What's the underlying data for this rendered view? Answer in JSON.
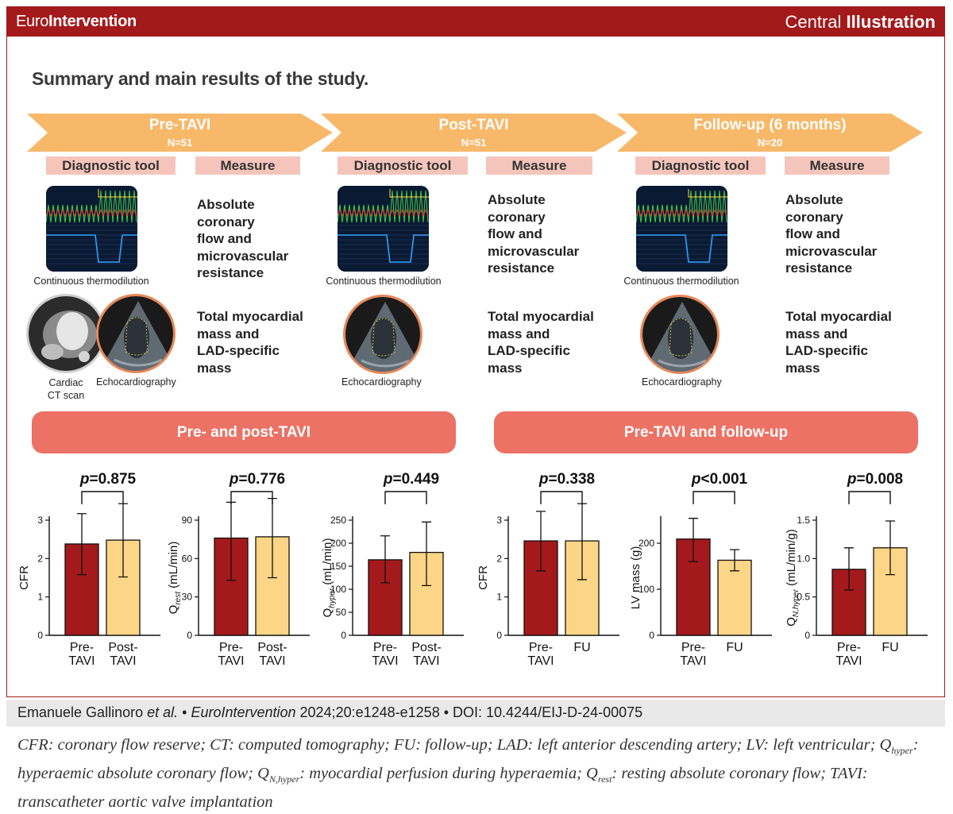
{
  "header": {
    "brand_light": "Euro",
    "brand_bold": "Intervention",
    "central_light": "Central",
    "central_bold": "Illustration"
  },
  "title": "Summary and main results of the study.",
  "colors": {
    "brand_red": "#a3191c",
    "arrow": "#f8b869",
    "chip": "#f5c5bb",
    "pill": "#ec7265",
    "bar_dark": "#a3191c",
    "bar_light": "#fdd586"
  },
  "phases": [
    {
      "label": "Pre-TAVI",
      "n": "N=51"
    },
    {
      "label": "Post-TAVI",
      "n": "N=51"
    },
    {
      "label": "Follow-up (6 months)",
      "n": "N=20"
    }
  ],
  "chips": {
    "tool": "Diagnostic tool",
    "measure": "Measure"
  },
  "tools": {
    "thermo": "Continuous thermodilution",
    "ct": "Cardiac CT scan",
    "echo": "Echocardiography"
  },
  "measures": {
    "flow": [
      "Absolute coronary",
      "flow and",
      "microvascular",
      "resistance"
    ],
    "mass": [
      "Total myocardial",
      "mass and",
      "LAD-specific mass"
    ]
  },
  "groups": {
    "pre_post": "Pre- and post-TAVI",
    "pre_fu": "Pre-TAVI and follow-up"
  },
  "chart_data": [
    {
      "type": "bar",
      "ylabel": "CFR",
      "p_label": "p",
      "p_value": "=0.875",
      "yticks": [
        "0",
        "1",
        "2",
        "3"
      ],
      "ylim": [
        0,
        3
      ],
      "categories": [
        "Pre-\nTAVI",
        "Post-\nTAVI"
      ],
      "values": [
        2.38,
        2.48
      ],
      "err_low": [
        1.58,
        1.52
      ],
      "err_high": [
        3.17,
        3.43
      ]
    },
    {
      "type": "bar",
      "ylabel": "Q",
      "ylabel_sub": "rest",
      "ylabel_unit": " (mL/min)",
      "p_label": "p",
      "p_value": "=0.776",
      "yticks": [
        "0",
        "30",
        "60",
        "90"
      ],
      "ylim": [
        0,
        90
      ],
      "categories": [
        "Pre-\nTAVI",
        "Post-\nTAVI"
      ],
      "values": [
        76,
        77
      ],
      "err_low": [
        43,
        45
      ],
      "err_high": [
        104,
        107
      ]
    },
    {
      "type": "bar",
      "ylabel": "Q",
      "ylabel_sub": "hyper",
      "ylabel_unit": " (mL/min)",
      "p_label": "p",
      "p_value": "=0.449",
      "yticks": [
        "0",
        "50",
        "100",
        "150",
        "200",
        "250"
      ],
      "ylim": [
        0,
        250
      ],
      "categories": [
        "Pre-\nTAVI",
        "Post-\nTAVI"
      ],
      "values": [
        164,
        180
      ],
      "err_low": [
        114,
        108
      ],
      "err_high": [
        216,
        246
      ]
    },
    {
      "type": "bar",
      "ylabel": "CFR",
      "p_label": "p",
      "p_value": "=0.338",
      "yticks": [
        "0",
        "1",
        "2",
        "3"
      ],
      "ylim": [
        0,
        3
      ],
      "categories": [
        "Pre-\nTAVI",
        "FU"
      ],
      "values": [
        2.46,
        2.46
      ],
      "err_low": [
        1.68,
        1.45
      ],
      "err_high": [
        3.23,
        3.43
      ]
    },
    {
      "type": "bar",
      "ylabel": "LV mass (g)",
      "p_label": "p",
      "p_value": "<0.001",
      "yticks": [
        "0",
        "100",
        "200"
      ],
      "ylim": [
        0,
        250
      ],
      "categories": [
        "Pre-\nTAVI",
        "FU"
      ],
      "values": [
        209,
        163
      ],
      "err_low": [
        160,
        140
      ],
      "err_high": [
        254,
        186
      ]
    },
    {
      "type": "bar",
      "ylabel": "Q",
      "ylabel_sub": "N,hyper",
      "ylabel_unit": " (mL/min/g)",
      "p_label": "p",
      "p_value": "=0.008",
      "yticks": [
        "0",
        "0.5",
        "1.0",
        "1.5"
      ],
      "ylim": [
        0,
        1.5
      ],
      "categories": [
        "Pre-\nTAVI",
        "FU"
      ],
      "values": [
        0.86,
        1.14
      ],
      "err_low": [
        0.59,
        0.79
      ],
      "err_high": [
        1.14,
        1.49
      ]
    }
  ],
  "citation": {
    "authors": "Emanuele Gallinoro",
    "etal": " et al.",
    "sep1": " • ",
    "journal": "EuroIntervention",
    "details": " 2024;20:e1248-e1258 • DOI: 10.4244/EIJ-D-24-00075"
  },
  "abbreviations": {
    "a": "CFR: coronary flow reserve; CT: computed tomography; FU: follow-up; LAD: left anterior descending artery; LV: left ventricular; Q",
    "a_sub": "hyper",
    "b": ": hyperaemic absolute coronary flow; Q",
    "b_sub": "N,hyper",
    "c": ": myocardial perfusion during hyperaemia; Q",
    "c_sub": "rest",
    "d": ": resting absolute coronary flow; TAVI: transcatheter aortic valve implantation"
  }
}
